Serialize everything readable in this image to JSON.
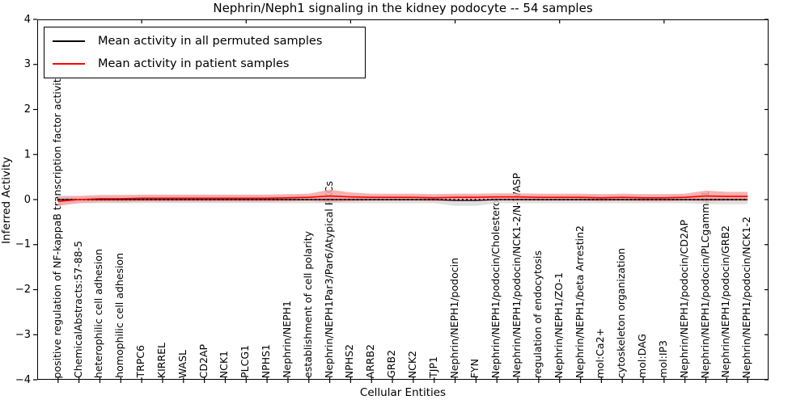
{
  "title": "Nephrin/Neph1 signaling in the kidney podocyte -- 54 samples",
  "axes": {
    "ylabel": "Inferred Activity",
    "xlabel": "Cellular Entities",
    "yticks": [
      "4",
      "3",
      "2",
      "1",
      "0",
      "−1",
      "−2",
      "−3",
      "−4"
    ]
  },
  "legend": {
    "items": [
      {
        "label": "Mean activity in all permuted samples",
        "color": "#000000"
      },
      {
        "label": "Mean activity in patient samples",
        "color": "#ff0000"
      }
    ]
  },
  "chart_data": {
    "type": "line",
    "title": "Nephrin/Neph1 signaling in the kidney podocyte -- 54 samples",
    "xlabel": "Cellular Entities",
    "ylabel": "Inferred Activity",
    "ylim": [
      -4,
      4
    ],
    "xlim": [
      0,
      35
    ],
    "grid": false,
    "legend_position": "upper left",
    "top_xticks": [
      5,
      10,
      15,
      20,
      25,
      30
    ],
    "x": [
      1,
      2,
      3,
      4,
      5,
      6,
      7,
      8,
      9,
      10,
      11,
      12,
      13,
      14,
      15,
      16,
      17,
      18,
      19,
      20,
      21,
      22,
      23,
      24,
      25,
      26,
      27,
      28,
      29,
      30,
      31,
      32,
      33,
      34
    ],
    "categories": [
      "positive regulation of NF-kappaB transcription factor activity",
      "ChemicalAbstracts:57-88-5",
      "heterophilic cell adhesion",
      "homophilic cell adhesion",
      "TRPC6",
      "KIRREL",
      "WASL",
      "CD2AP",
      "NCK1",
      "PLCG1",
      "NPHS1",
      "Nephrin/NEPH1",
      "establishment of cell polarity",
      "Nephrin/NEPH1Par3/Par6/Atypical PKCs",
      "NPHS2",
      "ARRB2",
      "GRB2",
      "NCK2",
      "TJP1",
      "Nephrin/NEPH1/podocin",
      "FYN",
      "Nephrin/NEPH1/podocin/Cholesterol",
      "Nephrin/NEPH1/podocin/NCK1-2/N-WASP",
      "regulation of endocytosis",
      "Nephrin/NEPH1/ZO-1",
      "Nephrin/NEPH1/beta Arrestin2",
      "mol:Ca2+",
      "cytoskeleton organization",
      "mol:DAG",
      "mol:IP3",
      "Nephrin/NEPH1/podocin/CD2AP",
      "Nephrin/NEPH1/podocin/PLCgamma1",
      "Nephrin/NEPH1/podocin/GRB2",
      "Nephrin/NEPH1/podocin/NCK1-2"
    ],
    "series": [
      {
        "name": "Mean activity in all permuted samples",
        "color": "#000000",
        "band_color": "#d9d9d9",
        "marker": "dotted",
        "values": [
          0,
          0,
          0,
          0,
          0,
          0,
          0,
          0,
          0,
          0,
          0,
          0,
          0,
          0,
          0,
          0,
          0,
          0,
          0,
          -0.02,
          -0.02,
          0,
          0,
          0,
          0,
          0,
          0,
          0,
          0,
          0,
          0,
          0,
          0,
          0
        ],
        "band_half": [
          0.1,
          0.08,
          0.08,
          0.08,
          0.08,
          0.08,
          0.08,
          0.08,
          0.08,
          0.08,
          0.08,
          0.08,
          0.08,
          0.08,
          0.08,
          0.08,
          0.08,
          0.08,
          0.08,
          0.12,
          0.12,
          0.08,
          0.08,
          0.08,
          0.08,
          0.08,
          0.08,
          0.08,
          0.08,
          0.08,
          0.08,
          0.1,
          0.1,
          0.1
        ]
      },
      {
        "name": "Mean activity in patient samples",
        "color": "#ff0000",
        "band_color": "#f5a5a5",
        "marker": "none",
        "values": [
          -0.04,
          0.0,
          0.02,
          0.02,
          0.03,
          0.03,
          0.03,
          0.03,
          0.03,
          0.03,
          0.03,
          0.04,
          0.05,
          0.08,
          0.06,
          0.05,
          0.05,
          0.05,
          0.04,
          0.05,
          0.05,
          0.06,
          0.06,
          0.05,
          0.05,
          0.05,
          0.04,
          0.05,
          0.04,
          0.04,
          0.05,
          0.08,
          0.07,
          0.07
        ],
        "band_half": [
          0.1,
          0.08,
          0.08,
          0.08,
          0.08,
          0.08,
          0.08,
          0.08,
          0.08,
          0.08,
          0.08,
          0.08,
          0.08,
          0.14,
          0.1,
          0.08,
          0.08,
          0.08,
          0.08,
          0.08,
          0.08,
          0.08,
          0.08,
          0.08,
          0.08,
          0.08,
          0.08,
          0.08,
          0.08,
          0.08,
          0.08,
          0.12,
          0.1,
          0.1
        ]
      }
    ]
  }
}
